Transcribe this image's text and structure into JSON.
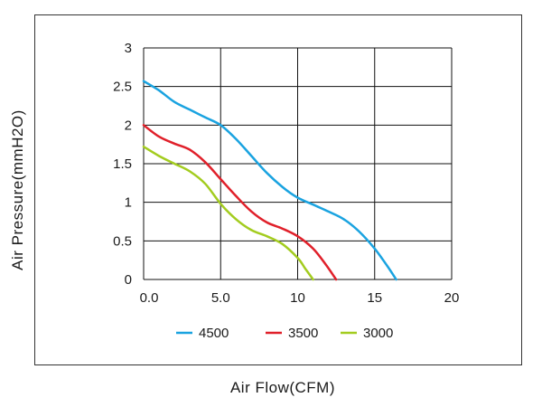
{
  "chart_data": {
    "type": "line",
    "title": "",
    "xlabel": "Air Flow(CFM)",
    "ylabel": "Air Pressure(mmH2O)",
    "xlim": [
      0,
      20
    ],
    "ylim": [
      0,
      3
    ],
    "xticks": [
      0,
      5,
      10,
      15,
      20
    ],
    "xtick_labels": [
      "0.0",
      "5.0",
      "10",
      "15",
      "20"
    ],
    "yticks": [
      0,
      0.5,
      1,
      1.5,
      2,
      2.5,
      3
    ],
    "ytick_labels": [
      "0",
      "0.5",
      "1",
      "1.5",
      "2",
      "2.5",
      "3"
    ],
    "grid": true,
    "legend_position": "bottom",
    "series": [
      {
        "name": "4500",
        "color": "#1aa3e0",
        "points": [
          [
            0,
            2.57
          ],
          [
            1,
            2.45
          ],
          [
            2,
            2.3
          ],
          [
            3,
            2.2
          ],
          [
            4,
            2.1
          ],
          [
            5,
            2.0
          ],
          [
            6,
            1.82
          ],
          [
            7,
            1.6
          ],
          [
            8,
            1.38
          ],
          [
            9,
            1.2
          ],
          [
            10,
            1.06
          ],
          [
            11,
            0.97
          ],
          [
            12,
            0.88
          ],
          [
            13,
            0.78
          ],
          [
            14,
            0.62
          ],
          [
            15,
            0.4
          ],
          [
            15.8,
            0.18
          ],
          [
            16.4,
            0.0
          ]
        ]
      },
      {
        "name": "3500",
        "color": "#e0202a",
        "points": [
          [
            0,
            2.0
          ],
          [
            1,
            1.85
          ],
          [
            2,
            1.76
          ],
          [
            3,
            1.68
          ],
          [
            4,
            1.52
          ],
          [
            5,
            1.3
          ],
          [
            6,
            1.08
          ],
          [
            7,
            0.88
          ],
          [
            8,
            0.74
          ],
          [
            9,
            0.66
          ],
          [
            10,
            0.56
          ],
          [
            11,
            0.4
          ],
          [
            11.8,
            0.2
          ],
          [
            12.5,
            0.0
          ]
        ]
      },
      {
        "name": "3000",
        "color": "#a3cc1f",
        "points": [
          [
            0,
            1.72
          ],
          [
            1,
            1.6
          ],
          [
            2,
            1.5
          ],
          [
            3,
            1.4
          ],
          [
            4,
            1.24
          ],
          [
            5,
            0.98
          ],
          [
            6,
            0.78
          ],
          [
            7,
            0.64
          ],
          [
            8,
            0.56
          ],
          [
            9,
            0.46
          ],
          [
            10,
            0.28
          ],
          [
            10.5,
            0.14
          ],
          [
            11.0,
            0.0
          ]
        ]
      }
    ]
  }
}
